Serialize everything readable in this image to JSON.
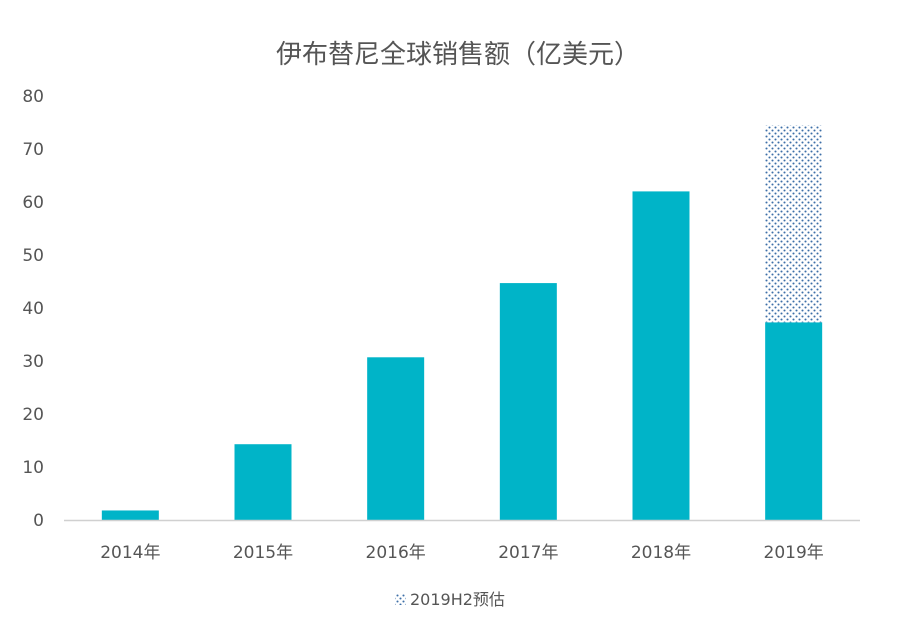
{
  "chart_data": {
    "type": "bar",
    "title": "伊布替尼全球销售额（亿美元）",
    "xlabel": "",
    "ylabel": "",
    "categories": [
      "2014年",
      "2015年",
      "2016年",
      "2017年",
      "2018年",
      "2019年"
    ],
    "ylim": [
      0,
      80
    ],
    "yticks": [
      0,
      10,
      20,
      30,
      40,
      50,
      60,
      70,
      80
    ],
    "grid": false,
    "legend_position": "bottom",
    "series": [
      {
        "values": [
          1.8,
          14.3,
          30.7,
          44.7,
          62.0,
          37.3
        ],
        "color": "#00b4c8",
        "pattern": "solid"
      },
      {
        "name": "2019H2预估",
        "values": [
          0,
          0,
          0,
          0,
          0,
          37.2
        ],
        "color": "#3d6fa8",
        "pattern": "dotted"
      }
    ]
  }
}
